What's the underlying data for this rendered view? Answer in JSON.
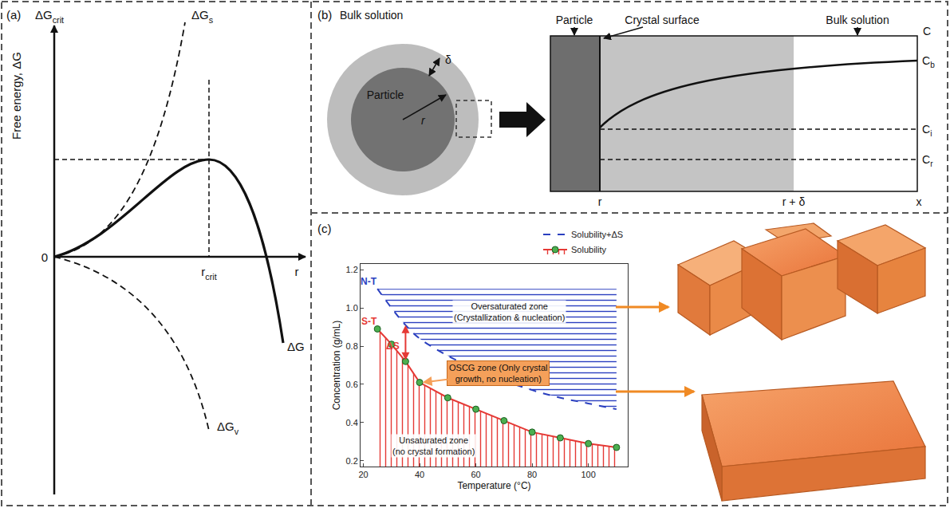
{
  "panel_a": {
    "label": "(a)",
    "y_axis": {
      "main": "ΔG",
      "sub": "crit"
    },
    "y_title": "Free energy, ΔG",
    "origin": "0",
    "x_axis": "r",
    "r_crit": {
      "main": "r",
      "sub": "crit"
    },
    "curve_labels": {
      "surface": {
        "main": "ΔG",
        "sub": "s"
      },
      "volume": {
        "main": "ΔG",
        "sub": "v"
      },
      "total": "ΔG"
    }
  },
  "panel_b": {
    "label": "(b)",
    "title": "Bulk solution",
    "particle": "Particle",
    "delta": "δ",
    "radius": "r",
    "profile": {
      "regions": [
        "Particle",
        "Crystal surface",
        "Bulk solution"
      ],
      "y_axis": "C",
      "levels": [
        {
          "main": "C",
          "sub": "b"
        },
        {
          "main": "C",
          "sub": "i"
        },
        {
          "main": "C",
          "sub": "r"
        }
      ],
      "x_labels": [
        "r",
        "r + δ",
        "x"
      ]
    }
  },
  "chart_data": {
    "type": "line",
    "panel_label": "(c)",
    "x_label": "Temperature (°C)",
    "y_label": "Concentration (g/mL)",
    "x": [
      25,
      30,
      35,
      40,
      50,
      60,
      70,
      80,
      90,
      100,
      110
    ],
    "series": [
      {
        "name": "Solubility",
        "color": "#e53935",
        "marker": "circle",
        "line_style": "solid",
        "values": [
          0.89,
          0.81,
          0.72,
          0.61,
          0.53,
          0.47,
          0.41,
          0.35,
          0.32,
          0.29,
          0.27
        ]
      },
      {
        "name": "Solubility+ΔS",
        "color": "#2a3fbf",
        "line_style": "dashed",
        "values": [
          1.1,
          1.0,
          0.91,
          0.84,
          0.75,
          0.68,
          0.62,
          0.57,
          0.53,
          0.5,
          0.47
        ]
      }
    ],
    "oversaturated_limit": 1.1,
    "delta_s_at": 35,
    "xlim": [
      19,
      114
    ],
    "xticks": [
      20,
      40,
      60,
      80,
      100
    ],
    "ylim": [
      0.17,
      1.23
    ],
    "yticks": [
      0.2,
      0.4,
      0.6,
      0.8,
      {
        "value": 1,
        "label": "1.0"
      },
      1.2
    ],
    "grid": false,
    "legend": "top right",
    "annotations": [
      {
        "text": "N-T",
        "x": 22,
        "y": 1.14,
        "color": "#2a3fbf"
      },
      {
        "text": "S-T",
        "x": 22,
        "y": 0.93,
        "color": "#e53935"
      },
      {
        "text": "ΔS",
        "x": 30.5,
        "y": 0.8,
        "color": "#e53935"
      },
      {
        "text": "Oversaturated zone\n(Crystallization & nucleation)",
        "x": 72,
        "y": 0.98,
        "color": "#111111"
      },
      {
        "text": "OSCG zone (Only crystal\ngrowth, no nucleation)",
        "x": 68,
        "y": 0.66,
        "arrow_to": [
          41,
          0.61
        ],
        "color": "#f5a05a"
      },
      {
        "text": "Unsaturated zone\n(no crystal formation)",
        "x": 45,
        "y": 0.28,
        "color": "#111111"
      }
    ]
  }
}
